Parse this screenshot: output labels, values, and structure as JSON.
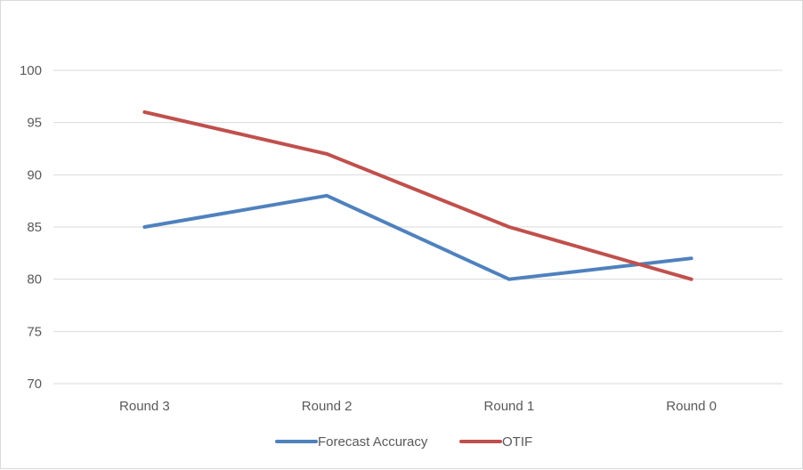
{
  "chart_data": {
    "type": "line",
    "categories": [
      "Round 3",
      "Round 2",
      "Round 1",
      "Round 0"
    ],
    "series": [
      {
        "name": "Forecast Accuracy",
        "values": [
          85,
          88,
          80,
          82
        ],
        "color": "#4f81bd"
      },
      {
        "name": "OTIF",
        "values": [
          96,
          92,
          85,
          80
        ],
        "color": "#c0504d"
      }
    ],
    "ylim": [
      70,
      100
    ],
    "yticks": [
      70,
      75,
      80,
      85,
      90,
      95,
      100
    ],
    "grid": true,
    "legend_position": "bottom"
  }
}
